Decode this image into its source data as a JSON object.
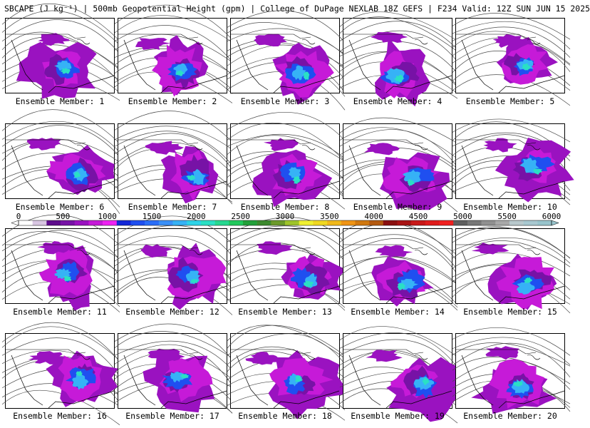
{
  "title": "SBCAPE (J kg⁻¹) | 500mb Geopotential Height (gpm) | College of DuPage NEXLAB 18Z GEFS | F234 Valid: 12Z SUN JUN 15 2025",
  "colorbar": {
    "labels": [
      "0",
      "500",
      "1000",
      "1500",
      "2000",
      "2500",
      "3000",
      "3500",
      "4000",
      "4500",
      "5000",
      "5500",
      "6000"
    ],
    "colors": [
      "#ffffff",
      "#d8c6e2",
      "#5e0c8c",
      "#7712a6",
      "#9a12c0",
      "#c61ad8",
      "#ee22f2",
      "#1428d8",
      "#1f4ff0",
      "#2a6ef8",
      "#3a90f8",
      "#36b2f6",
      "#2ed3e8",
      "#2ae0c4",
      "#27d890",
      "#22c95c",
      "#23a03a",
      "#3d8a2e",
      "#6b9a2a",
      "#9ec42a",
      "#f0f030",
      "#f0d820",
      "#f0b81a",
      "#f09414",
      "#d07810",
      "#b45a10",
      "#8a1010",
      "#a81414",
      "#c81818",
      "#e01c1c",
      "#f02020",
      "#606060",
      "#787878",
      "#909090",
      "#a8a8a8",
      "#b8c8cc",
      "#a8c8d0",
      "#98c4cc"
    ]
  },
  "members": [
    {
      "label": "Ensemble Member: 1"
    },
    {
      "label": "Ensemble Member: 2"
    },
    {
      "label": "Ensemble Member: 3"
    },
    {
      "label": "Ensemble Member: 4"
    },
    {
      "label": "Ensemble Member: 5"
    },
    {
      "label": "Ensemble Member: 6"
    },
    {
      "label": "Ensemble Member: 7"
    },
    {
      "label": "Ensemble Member: 8"
    },
    {
      "label": "Ensemble Member: 9"
    },
    {
      "label": "Ensemble Member: 10"
    },
    {
      "label": "Ensemble Member: 11"
    },
    {
      "label": "Ensemble Member: 12"
    },
    {
      "label": "Ensemble Member: 13"
    },
    {
      "label": "Ensemble Member: 14"
    },
    {
      "label": "Ensemble Member: 15"
    },
    {
      "label": "Ensemble Member: 16"
    },
    {
      "label": "Ensemble Member: 17"
    },
    {
      "label": "Ensemble Member: 18"
    },
    {
      "label": "Ensemble Member: 19"
    },
    {
      "label": "Ensemble Member: 20"
    }
  ]
}
